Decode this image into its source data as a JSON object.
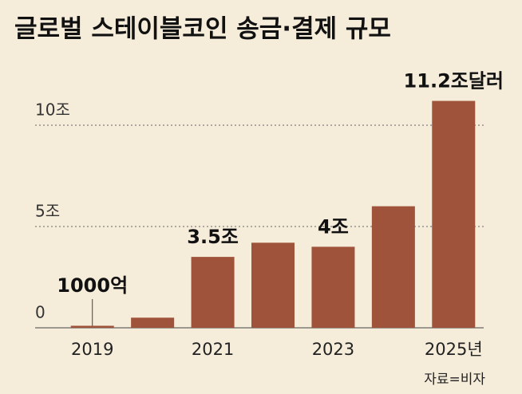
{
  "chart_data": {
    "type": "bar",
    "title": "글로벌 스테이블코인 송금·결제 규모",
    "categories": [
      "2019",
      null,
      "2021",
      null,
      "2023",
      null,
      "2025년"
    ],
    "values": [
      0.1,
      0.5,
      3.5,
      4.2,
      4,
      6,
      11.2
    ],
    "value_labels": [
      "1000억",
      null,
      "3.5조",
      null,
      "4조",
      null,
      "11.2조달러"
    ],
    "color": "#9e533a",
    "ylim": [
      0,
      11.5
    ],
    "yticks": [
      0,
      {
        "value": 5,
        "label": "5조"
      },
      {
        "value": 10,
        "label": "10조"
      }
    ],
    "grid": true,
    "source": "자료=비자"
  }
}
